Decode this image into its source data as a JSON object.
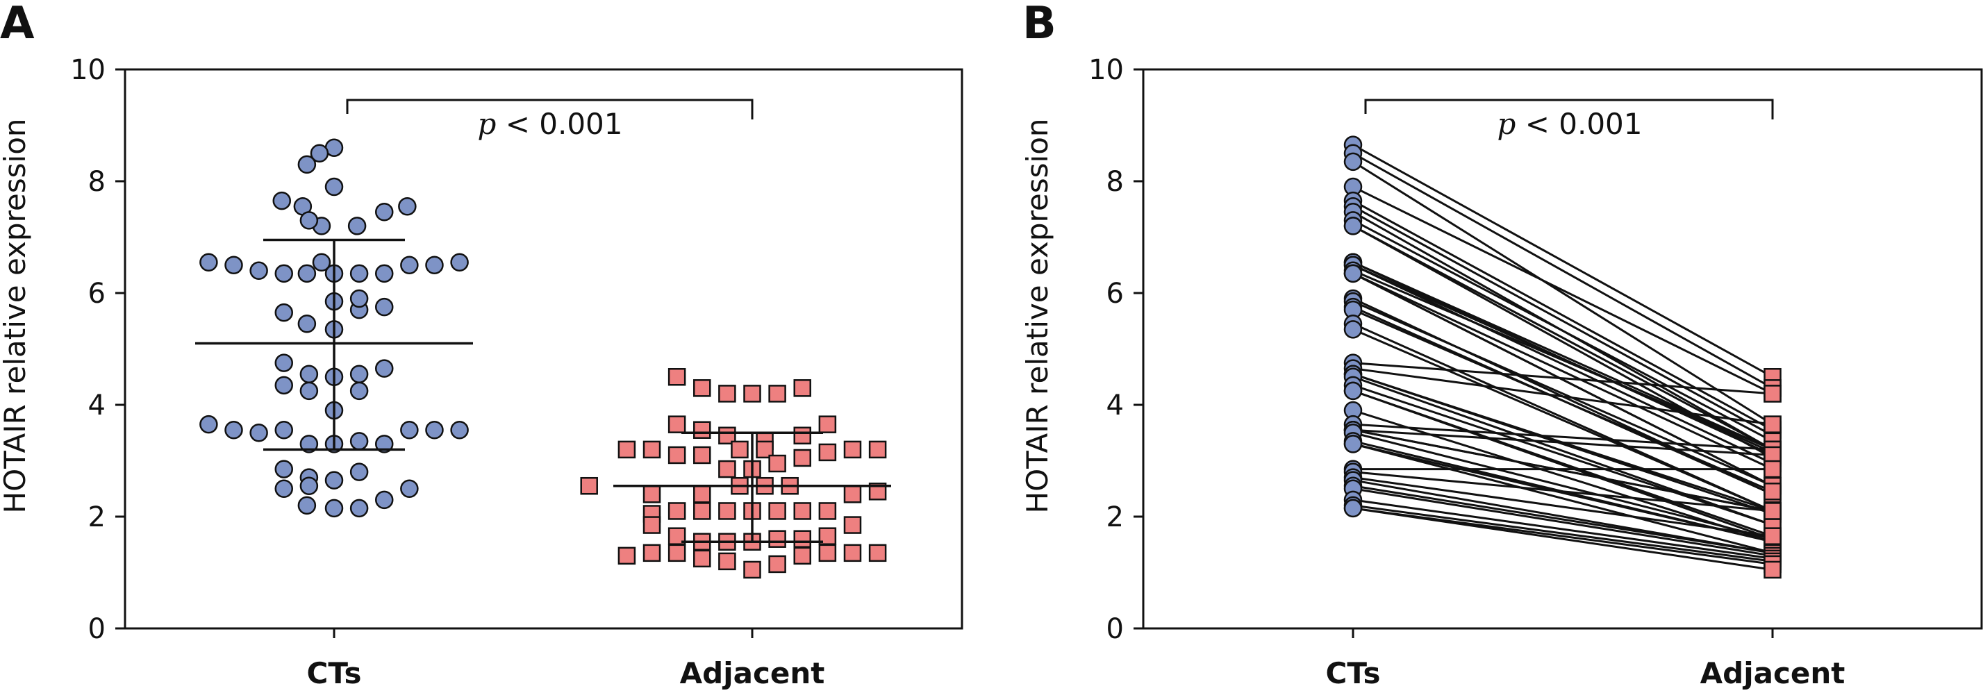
{
  "colors": {
    "cts_fill": "#7E93C6",
    "adjacent_fill": "#EE8080",
    "stroke": "#111111"
  },
  "chart_data": [
    {
      "panel": "A",
      "type": "scatter",
      "ylabel": "HOTAIR relative expression",
      "xlabel": "",
      "categories": [
        "CTs",
        "Adjacent"
      ],
      "ylim": [
        0,
        10
      ],
      "yticks": [
        "0",
        "2",
        "4",
        "6",
        "8",
        "10"
      ],
      "grid": false,
      "significance": {
        "p_symbol": "p",
        "text": " < 0.001"
      },
      "series": [
        {
          "name": "CTs",
          "marker": "circle",
          "mean": 5.1,
          "sd_upper": 6.95,
          "sd_lower": 3.2,
          "points": [
            {
              "o": 0.0,
              "y": 8.6
            },
            {
              "o": 0.0,
              "y": 7.9
            },
            {
              "o": 0.0,
              "y": 6.35
            },
            {
              "o": 0.0,
              "y": 5.85
            },
            {
              "o": 0.0,
              "y": 5.35
            },
            {
              "o": 0.0,
              "y": 4.5
            },
            {
              "o": 0.0,
              "y": 3.9
            },
            {
              "o": 0.0,
              "y": 3.3
            },
            {
              "o": 0.0,
              "y": 2.65
            },
            {
              "o": 0.0,
              "y": 2.15
            },
            {
              "o": -0.035,
              "y": 8.5
            },
            {
              "o": -0.065,
              "y": 8.3
            },
            {
              "o": -0.125,
              "y": 7.65
            },
            {
              "o": -0.075,
              "y": 7.55
            },
            {
              "o": -0.03,
              "y": 7.2
            },
            {
              "o": -0.06,
              "y": 7.3
            },
            {
              "o": 0.055,
              "y": 7.2
            },
            {
              "o": 0.12,
              "y": 7.45
            },
            {
              "o": 0.175,
              "y": 7.55
            },
            {
              "o": -0.3,
              "y": 6.55
            },
            {
              "o": -0.24,
              "y": 6.5
            },
            {
              "o": -0.18,
              "y": 6.4
            },
            {
              "o": -0.12,
              "y": 6.35
            },
            {
              "o": -0.065,
              "y": 6.35
            },
            {
              "o": -0.03,
              "y": 6.55
            },
            {
              "o": 0.06,
              "y": 6.35
            },
            {
              "o": 0.12,
              "y": 6.35
            },
            {
              "o": 0.18,
              "y": 6.5
            },
            {
              "o": 0.24,
              "y": 6.5
            },
            {
              "o": 0.3,
              "y": 6.55
            },
            {
              "o": -0.12,
              "y": 5.65
            },
            {
              "o": -0.065,
              "y": 5.45
            },
            {
              "o": 0.06,
              "y": 5.7
            },
            {
              "o": 0.12,
              "y": 5.75
            },
            {
              "o": 0.06,
              "y": 5.9
            },
            {
              "o": -0.12,
              "y": 4.75
            },
            {
              "o": -0.06,
              "y": 4.55
            },
            {
              "o": 0.06,
              "y": 4.55
            },
            {
              "o": 0.12,
              "y": 4.65
            },
            {
              "o": -0.12,
              "y": 4.35
            },
            {
              "o": -0.06,
              "y": 4.25
            },
            {
              "o": 0.06,
              "y": 4.25
            },
            {
              "o": -0.3,
              "y": 3.65
            },
            {
              "o": -0.24,
              "y": 3.55
            },
            {
              "o": -0.18,
              "y": 3.5
            },
            {
              "o": -0.12,
              "y": 3.55
            },
            {
              "o": -0.06,
              "y": 3.3
            },
            {
              "o": 0.06,
              "y": 3.35
            },
            {
              "o": 0.12,
              "y": 3.3
            },
            {
              "o": 0.18,
              "y": 3.55
            },
            {
              "o": 0.24,
              "y": 3.55
            },
            {
              "o": 0.3,
              "y": 3.55
            },
            {
              "o": -0.12,
              "y": 2.85
            },
            {
              "o": -0.06,
              "y": 2.7
            },
            {
              "o": 0.06,
              "y": 2.8
            },
            {
              "o": -0.12,
              "y": 2.5
            },
            {
              "o": -0.06,
              "y": 2.55
            },
            {
              "o": 0.12,
              "y": 2.3
            },
            {
              "o": 0.18,
              "y": 2.5
            },
            {
              "o": -0.065,
              "y": 2.2
            },
            {
              "o": 0.06,
              "y": 2.15
            }
          ]
        },
        {
          "name": "Adjacent",
          "marker": "square",
          "mean": 2.55,
          "sd_upper": 3.5,
          "sd_lower": 1.55,
          "points": [
            {
              "o": -0.18,
              "y": 4.5
            },
            {
              "o": -0.12,
              "y": 4.3
            },
            {
              "o": -0.06,
              "y": 4.2
            },
            {
              "o": 0.0,
              "y": 4.2
            },
            {
              "o": 0.06,
              "y": 4.2
            },
            {
              "o": 0.12,
              "y": 4.3
            },
            {
              "o": -0.18,
              "y": 3.65
            },
            {
              "o": -0.12,
              "y": 3.55
            },
            {
              "o": -0.06,
              "y": 3.45
            },
            {
              "o": 0.03,
              "y": 3.35
            },
            {
              "o": 0.12,
              "y": 3.45
            },
            {
              "o": 0.18,
              "y": 3.65
            },
            {
              "o": -0.3,
              "y": 3.2
            },
            {
              "o": -0.24,
              "y": 3.2
            },
            {
              "o": -0.18,
              "y": 3.1
            },
            {
              "o": -0.12,
              "y": 3.1
            },
            {
              "o": -0.03,
              "y": 3.2
            },
            {
              "o": 0.03,
              "y": 3.2
            },
            {
              "o": 0.06,
              "y": 2.95
            },
            {
              "o": 0.12,
              "y": 3.05
            },
            {
              "o": 0.18,
              "y": 3.15
            },
            {
              "o": 0.24,
              "y": 3.2
            },
            {
              "o": 0.3,
              "y": 3.2
            },
            {
              "o": -0.06,
              "y": 2.85
            },
            {
              "o": 0.0,
              "y": 2.85
            },
            {
              "o": -0.39,
              "y": 2.55
            },
            {
              "o": -0.24,
              "y": 2.4
            },
            {
              "o": -0.12,
              "y": 2.4
            },
            {
              "o": -0.03,
              "y": 2.55
            },
            {
              "o": 0.03,
              "y": 2.55
            },
            {
              "o": 0.09,
              "y": 2.55
            },
            {
              "o": 0.24,
              "y": 2.4
            },
            {
              "o": 0.3,
              "y": 2.45
            },
            {
              "o": -0.24,
              "y": 2.05
            },
            {
              "o": -0.18,
              "y": 2.1
            },
            {
              "o": -0.12,
              "y": 2.1
            },
            {
              "o": -0.06,
              "y": 2.1
            },
            {
              "o": 0.0,
              "y": 2.1
            },
            {
              "o": 0.06,
              "y": 2.1
            },
            {
              "o": 0.12,
              "y": 2.1
            },
            {
              "o": 0.18,
              "y": 2.1
            },
            {
              "o": -0.24,
              "y": 1.85
            },
            {
              "o": 0.24,
              "y": 1.85
            },
            {
              "o": -0.18,
              "y": 1.65
            },
            {
              "o": -0.12,
              "y": 1.55
            },
            {
              "o": -0.06,
              "y": 1.55
            },
            {
              "o": 0.0,
              "y": 1.55
            },
            {
              "o": 0.06,
              "y": 1.6
            },
            {
              "o": 0.12,
              "y": 1.6
            },
            {
              "o": 0.18,
              "y": 1.65
            },
            {
              "o": -0.3,
              "y": 1.3
            },
            {
              "o": -0.24,
              "y": 1.35
            },
            {
              "o": -0.18,
              "y": 1.35
            },
            {
              "o": -0.12,
              "y": 1.25
            },
            {
              "o": -0.06,
              "y": 1.2
            },
            {
              "o": 0.0,
              "y": 1.05
            },
            {
              "o": 0.06,
              "y": 1.15
            },
            {
              "o": 0.12,
              "y": 1.3
            },
            {
              "o": 0.18,
              "y": 1.35
            },
            {
              "o": 0.24,
              "y": 1.35
            },
            {
              "o": 0.3,
              "y": 1.35
            }
          ]
        }
      ]
    },
    {
      "panel": "B",
      "type": "line",
      "ylabel": "HOTAIR relative expression",
      "xlabel": "",
      "categories": [
        "CTs",
        "Adjacent"
      ],
      "ylim": [
        0,
        10
      ],
      "yticks": [
        "0",
        "2",
        "4",
        "6",
        "8",
        "10"
      ],
      "grid": false,
      "significance": {
        "p_symbol": "p",
        "text": " < 0.001"
      },
      "pairs": [
        [
          8.65,
          4.5
        ],
        [
          8.5,
          4.3
        ],
        [
          8.35,
          3.65
        ],
        [
          7.9,
          4.2
        ],
        [
          7.65,
          3.55
        ],
        [
          7.55,
          3.45
        ],
        [
          7.45,
          3.2
        ],
        [
          7.3,
          3.35
        ],
        [
          7.2,
          3.2
        ],
        [
          7.2,
          3.05
        ],
        [
          6.55,
          3.2
        ],
        [
          6.55,
          3.1
        ],
        [
          6.5,
          2.95
        ],
        [
          6.5,
          3.15
        ],
        [
          6.4,
          3.2
        ],
        [
          6.35,
          2.85
        ],
        [
          6.35,
          2.55
        ],
        [
          6.35,
          2.55
        ],
        [
          5.9,
          2.4
        ],
        [
          5.85,
          2.55
        ],
        [
          5.75,
          2.4
        ],
        [
          5.7,
          2.45
        ],
        [
          5.45,
          2.1
        ],
        [
          5.35,
          2.1
        ],
        [
          4.75,
          4.2
        ],
        [
          4.65,
          3.65
        ],
        [
          4.55,
          2.1
        ],
        [
          4.55,
          2.05
        ],
        [
          4.5,
          1.85
        ],
        [
          4.35,
          1.85
        ],
        [
          4.25,
          1.65
        ],
        [
          4.25,
          1.6
        ],
        [
          3.9,
          1.55
        ],
        [
          3.65,
          3.2
        ],
        [
          3.55,
          3.1
        ],
        [
          3.55,
          2.1
        ],
        [
          3.55,
          2.1
        ],
        [
          3.5,
          1.6
        ],
        [
          3.35,
          1.55
        ],
        [
          3.3,
          1.55
        ],
        [
          3.3,
          1.35
        ],
        [
          2.85,
          2.85
        ],
        [
          2.8,
          2.1
        ],
        [
          2.7,
          1.65
        ],
        [
          2.65,
          1.35
        ],
        [
          2.55,
          1.35
        ],
        [
          2.5,
          1.3
        ],
        [
          2.3,
          1.25
        ],
        [
          2.2,
          1.2
        ],
        [
          2.15,
          1.15
        ],
        [
          2.15,
          1.05
        ]
      ]
    }
  ]
}
